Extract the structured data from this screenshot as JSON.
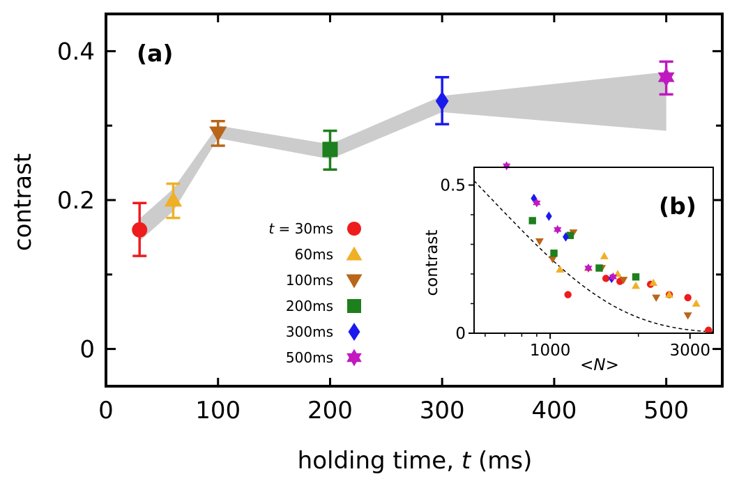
{
  "chart_data": [
    {
      "id": "a",
      "type": "scatter",
      "panel_label": "(a)",
      "xlabel": "holding time, ",
      "xlabel_italic": "t",
      "xlabel_unit": " (ms)",
      "ylabel": "contrast",
      "xlim": [
        0,
        550
      ],
      "ylim": [
        -0.05,
        0.45
      ],
      "xticks": [
        0,
        100,
        200,
        300,
        400,
        500
      ],
      "xtick_labels": [
        "0",
        "100",
        "200",
        "300",
        "400",
        "500"
      ],
      "yticks": [
        0,
        0.2,
        0.4
      ],
      "ytick_labels": [
        "0",
        "0.2",
        "0.4"
      ],
      "series": [
        {
          "name": "30ms",
          "marker": "circle",
          "color": "#ee1c1c",
          "x": 30,
          "y": 0.16,
          "yerr": [
            0.125,
            0.196
          ]
        },
        {
          "name": "60ms",
          "marker": "triangle-up",
          "color": "#efb027",
          "x": 60,
          "y": 0.2,
          "yerr": [
            0.176,
            0.222
          ]
        },
        {
          "name": "100ms",
          "marker": "triangle-down",
          "color": "#b9651a",
          "x": 100,
          "y": 0.29,
          "yerr": [
            0.273,
            0.306
          ]
        },
        {
          "name": "200ms",
          "marker": "square",
          "color": "#1d7f1d",
          "x": 200,
          "y": 0.268,
          "yerr": [
            0.241,
            0.293
          ]
        },
        {
          "name": "300ms",
          "marker": "diamond",
          "color": "#1a1aee",
          "x": 300,
          "y": 0.333,
          "yerr": [
            0.302,
            0.365
          ]
        },
        {
          "name": "500ms",
          "marker": "star",
          "color": "#c019c0",
          "x": 500,
          "y": 0.365,
          "yerr": [
            0.342,
            0.386
          ]
        }
      ],
      "band": {
        "color": "#cccccc",
        "x": [
          30,
          60,
          100,
          200,
          300,
          500
        ],
        "upper": [
          0.175,
          0.215,
          0.3,
          0.275,
          0.34,
          0.372
        ],
        "lower": [
          0.145,
          0.185,
          0.283,
          0.255,
          0.318,
          0.293
        ]
      },
      "legend": {
        "prefix_italic": "t",
        "prefix_rest": " = ",
        "position": "center",
        "labels": [
          "30ms",
          "60ms",
          "100ms",
          "200ms",
          "300ms",
          "500ms"
        ]
      }
    },
    {
      "id": "b",
      "type": "scatter",
      "panel_label": "(b)",
      "xlabel": "<N>",
      "xlabel_open": "<",
      "xlabel_italic": "N",
      "xlabel_close": ">",
      "ylabel": "contrast",
      "xscale": "log",
      "xlim": [
        550,
        3600
      ],
      "ylim": [
        0,
        0.56
      ],
      "xticks_major": [
        1000,
        3000
      ],
      "xtick_labels": [
        "1000",
        "3000"
      ],
      "xticks_minor": [
        600,
        700,
        800,
        900,
        2000
      ],
      "yticks": [
        0,
        0.5
      ],
      "ytick_labels": [
        "0",
        "0.5"
      ],
      "fit_curve": {
        "style": "dashed",
        "color": "#000000",
        "formula": "1.22*exp(-0.00157*N)"
      },
      "series": [
        {
          "name": "30ms",
          "marker": "circle",
          "color": "#ee1c1c",
          "points": [
            [
              1150,
              0.13
            ],
            [
              1550,
              0.185
            ],
            [
              1730,
              0.175
            ],
            [
              2200,
              0.165
            ],
            [
              2550,
              0.13
            ],
            [
              2950,
              0.12
            ],
            [
              3470,
              0.01
            ]
          ]
        },
        {
          "name": "60ms",
          "marker": "triangle-up",
          "color": "#efb027",
          "points": [
            [
              1080,
              0.215
            ],
            [
              1350,
              0.22
            ],
            [
              1530,
              0.26
            ],
            [
              1700,
              0.2
            ],
            [
              1960,
              0.16
            ],
            [
              2250,
              0.17
            ],
            [
              2550,
              0.13
            ],
            [
              3150,
              0.1
            ]
          ]
        },
        {
          "name": "100ms",
          "marker": "triangle-down",
          "color": "#b9651a",
          "points": [
            [
              920,
              0.31
            ],
            [
              1020,
              0.25
            ],
            [
              1200,
              0.34
            ],
            [
              1500,
              0.22
            ],
            [
              1780,
              0.18
            ],
            [
              2300,
              0.12
            ],
            [
              2950,
              0.06
            ]
          ]
        },
        {
          "name": "200ms",
          "marker": "square",
          "color": "#1d7f1d",
          "points": [
            [
              870,
              0.38
            ],
            [
              1030,
              0.27
            ],
            [
              1170,
              0.33
            ],
            [
              1470,
              0.22
            ],
            [
              1960,
              0.19
            ]
          ]
        },
        {
          "name": "300ms",
          "marker": "diamond",
          "color": "#1a1aee",
          "points": [
            [
              880,
              0.455
            ],
            [
              990,
              0.395
            ],
            [
              1130,
              0.325
            ],
            [
              1620,
              0.185
            ]
          ]
        },
        {
          "name": "500ms",
          "marker": "star",
          "color": "#c019c0",
          "points": [
            [
              710,
              0.565
            ],
            [
              900,
              0.44
            ],
            [
              1060,
              0.35
            ],
            [
              1350,
              0.22
            ],
            [
              1640,
              0.19
            ]
          ]
        }
      ]
    }
  ]
}
